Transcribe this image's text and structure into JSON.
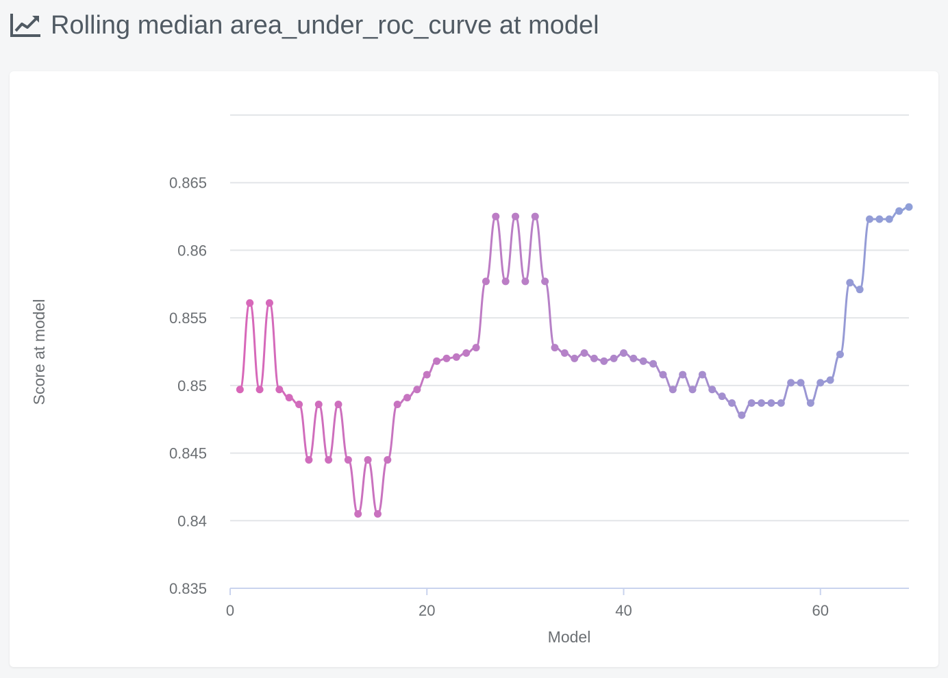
{
  "header": {
    "title": "Rolling median area_under_roc_curve at model",
    "icon": "line-chart-icon"
  },
  "colors": {
    "line_start": "#d966b8",
    "line_end": "#8f9fd8",
    "grid": "#e3e5e8",
    "axis": "#c9d3ee",
    "tick_text": "#6b6f73",
    "title_text": "#505a63"
  },
  "chart_data": {
    "type": "line",
    "title": "",
    "xlabel": "Model",
    "ylabel": "Score at model",
    "xlim": [
      0,
      69
    ],
    "ylim": [
      0.835,
      0.87
    ],
    "x_ticks": [
      0,
      20,
      40,
      60
    ],
    "y_ticks": [
      0.835,
      0.84,
      0.845,
      0.85,
      0.855,
      0.86,
      0.865
    ],
    "y_tick_labels": [
      "0.835",
      "0.84",
      "0.845",
      "0.85",
      "0.855",
      "0.86",
      "0.865"
    ],
    "grid": true,
    "series": [
      {
        "x": [
          1,
          2,
          3,
          4,
          5,
          6,
          7,
          8,
          9,
          10,
          11,
          12,
          13,
          14,
          15,
          16,
          17,
          18,
          19,
          20,
          21,
          22,
          23,
          24,
          25,
          26,
          27,
          28,
          29,
          30,
          31,
          32,
          33,
          34,
          35,
          36,
          37,
          38,
          39,
          40,
          41,
          42,
          43,
          44,
          45,
          46,
          47,
          48,
          49,
          50,
          51,
          52,
          53,
          54,
          55,
          56,
          57,
          58,
          59,
          60,
          61,
          62,
          63,
          64,
          65,
          66,
          67,
          68,
          69
        ],
        "y": [
          0.8497,
          0.8561,
          0.8497,
          0.8561,
          0.8497,
          0.8491,
          0.8486,
          0.8445,
          0.8486,
          0.8445,
          0.8486,
          0.8445,
          0.8405,
          0.8445,
          0.8405,
          0.8445,
          0.8486,
          0.8491,
          0.8497,
          0.8508,
          0.8518,
          0.852,
          0.8521,
          0.8524,
          0.8528,
          0.8577,
          0.8625,
          0.8577,
          0.8625,
          0.8577,
          0.8625,
          0.8577,
          0.8528,
          0.8524,
          0.852,
          0.8524,
          0.852,
          0.8518,
          0.852,
          0.8524,
          0.852,
          0.8518,
          0.8516,
          0.8508,
          0.8497,
          0.8508,
          0.8497,
          0.8508,
          0.8497,
          0.8492,
          0.8487,
          0.8478,
          0.8487,
          0.8487,
          0.8487,
          0.8487,
          0.8502,
          0.8502,
          0.8487,
          0.8502,
          0.8504,
          0.8523,
          0.8576,
          0.8571,
          0.8623,
          0.8623,
          0.8623,
          0.8629,
          0.8632
        ]
      }
    ]
  }
}
